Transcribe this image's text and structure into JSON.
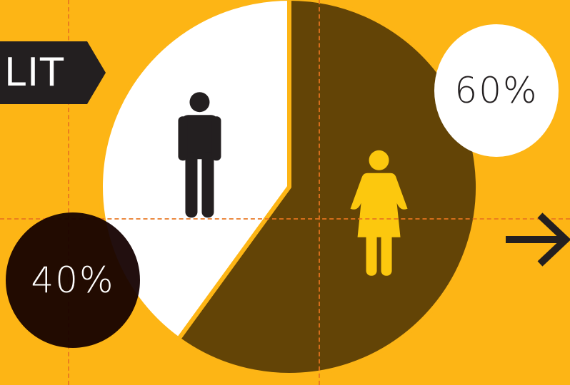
{
  "tag": {
    "label": "LIT"
  },
  "chart_data": {
    "type": "pie",
    "start_angle_deg": 0,
    "direction": "clockwise",
    "slices": [
      {
        "key": "women",
        "value": 60,
        "color": "#634406",
        "icon": "female-person-icon",
        "icon_color": "#fcc80e"
      },
      {
        "key": "men",
        "value": 40,
        "color": "#ffffff",
        "icon": "male-person-icon",
        "icon_color": "#231f20"
      }
    ],
    "data_labels": [
      {
        "key": "women",
        "text": "60%"
      },
      {
        "key": "men",
        "text": "40%"
      }
    ]
  },
  "colors": {
    "background": "#fdb515",
    "guide_lines": "#e8751f",
    "tag_background": "#231f20",
    "arrow": "#231f20"
  },
  "icons": {
    "next": "arrow-right-icon"
  }
}
